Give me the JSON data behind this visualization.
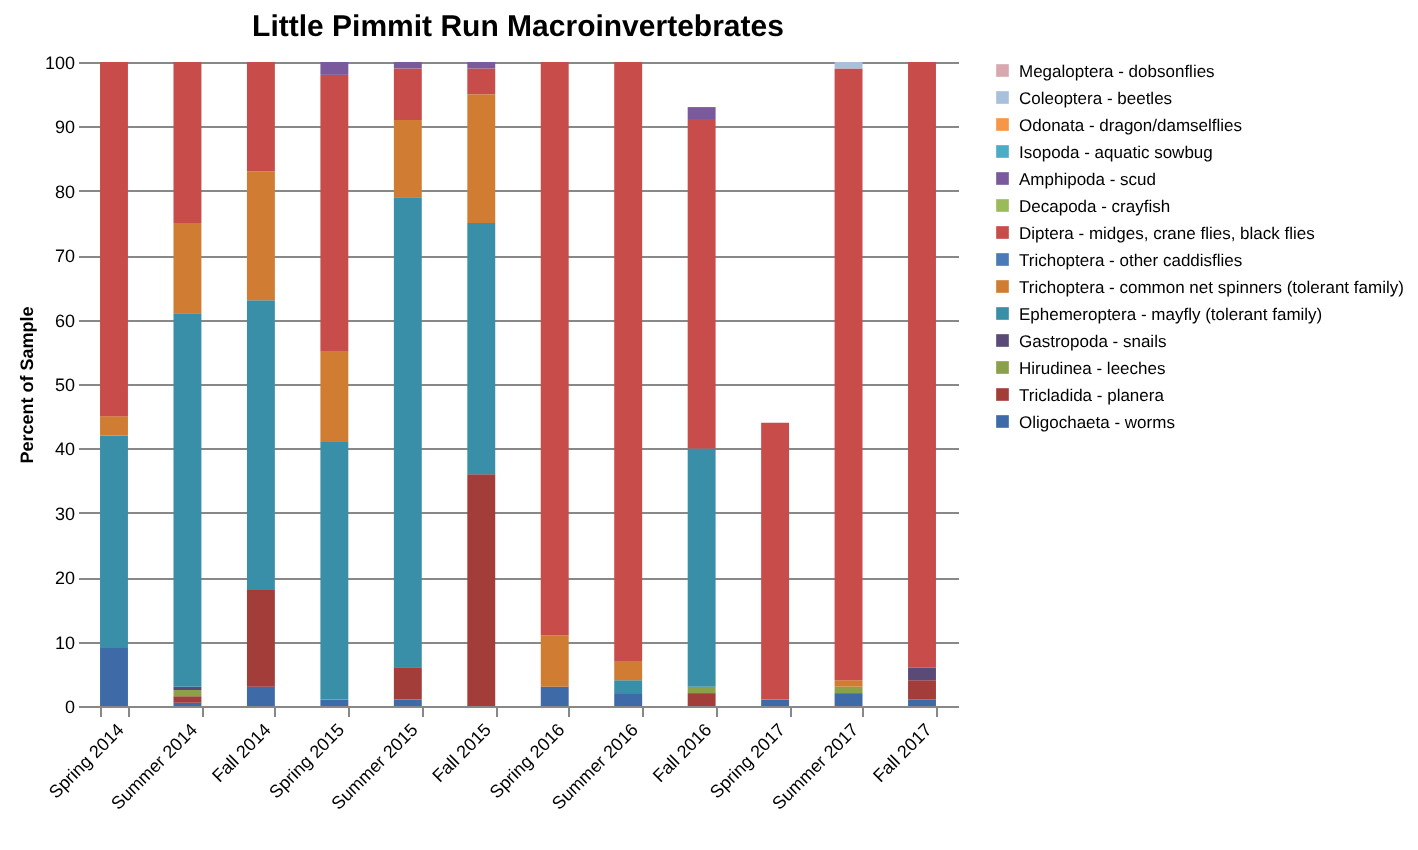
{
  "chart_data": {
    "type": "bar",
    "title": "Little Pimmit Run Macroinvertebrates",
    "ylabel": "Percent of Sample",
    "stacked": true,
    "legend": "right",
    "grid": "y",
    "ylim": [
      0,
      100
    ],
    "yticks": [
      0,
      10,
      20,
      30,
      40,
      50,
      60,
      70,
      80,
      90,
      100
    ],
    "categories": [
      "Spring 2014",
      "Summer 2014",
      "Fall 2014",
      "Spring 2015",
      "Summer 2015",
      "Fall 2015",
      "Spring 2016",
      "Summer 2016",
      "Fall 2016",
      "Spring 2017",
      "Summer 2017",
      "Fall 2017"
    ],
    "series": [
      {
        "name": "Oligochaeta - worms",
        "color": "#3e6aa8",
        "values": [
          9,
          0.5,
          3,
          1,
          1,
          0,
          3,
          2,
          0,
          1,
          2,
          1
        ]
      },
      {
        "name": "Tricladida - planera",
        "color": "#a33d3a",
        "values": [
          0,
          1,
          15,
          0,
          5,
          36,
          0,
          0,
          2,
          0,
          0,
          3
        ]
      },
      {
        "name": "Hirudinea - leeches",
        "color": "#8aa04a",
        "values": [
          0,
          1,
          0,
          0,
          0,
          0,
          0,
          0,
          1,
          0,
          1,
          0
        ]
      },
      {
        "name": "Gastropoda - snails",
        "color": "#5a4a78",
        "values": [
          0,
          0.5,
          0,
          0,
          0,
          0,
          0,
          0,
          0,
          0,
          0,
          2
        ]
      },
      {
        "name": "Ephemeroptera - mayfly (tolerant family)",
        "color": "#3a8fa8",
        "values": [
          33,
          58,
          45,
          40,
          73,
          39,
          0,
          2,
          37,
          0,
          0,
          0
        ]
      },
      {
        "name": "Trichoptera - common net spinners (tolerant family)",
        "color": "#d07c32",
        "values": [
          3,
          14,
          20,
          14,
          12,
          20,
          8,
          3,
          0,
          0,
          1,
          0
        ]
      },
      {
        "name": "Trichoptera - other caddisflies",
        "color": "#4a7ab8",
        "values": [
          0,
          0,
          0,
          0,
          0,
          0,
          0,
          0,
          0,
          0,
          0,
          0
        ]
      },
      {
        "name": "Diptera - midges, crane flies, black flies",
        "color": "#c84c4a",
        "values": [
          55,
          25,
          17,
          43,
          8,
          4,
          89,
          93,
          51,
          43,
          95,
          94
        ]
      },
      {
        "name": "Decapoda - crayfish",
        "color": "#9bbb59",
        "values": [
          0,
          0,
          0,
          0,
          0,
          0,
          0,
          0,
          0,
          0,
          0,
          0
        ]
      },
      {
        "name": "Amphipoda - scud",
        "color": "#7a5a9c",
        "values": [
          0,
          0,
          0,
          2,
          1,
          1,
          0,
          0,
          2,
          0,
          0,
          0
        ]
      },
      {
        "name": "Isopoda - aquatic sowbug",
        "color": "#4bacc6",
        "values": [
          0,
          0,
          0,
          0,
          0,
          0,
          0,
          0,
          0,
          0,
          0,
          0
        ]
      },
      {
        "name": "Odonata - dragon/damselflies",
        "color": "#f79646",
        "values": [
          0,
          0,
          0,
          0,
          0,
          0,
          0,
          0,
          0,
          0,
          0,
          0
        ]
      },
      {
        "name": "Coleoptera - beetles",
        "color": "#a8c0dc",
        "values": [
          0,
          0,
          0,
          0,
          0,
          0,
          0,
          0,
          0,
          0,
          1,
          0
        ]
      },
      {
        "name": "Megaloptera - dobsonflies",
        "color": "#d8a8b0",
        "values": [
          0,
          0,
          0,
          0,
          0,
          0,
          0,
          0,
          0,
          0,
          0,
          0
        ]
      }
    ]
  }
}
